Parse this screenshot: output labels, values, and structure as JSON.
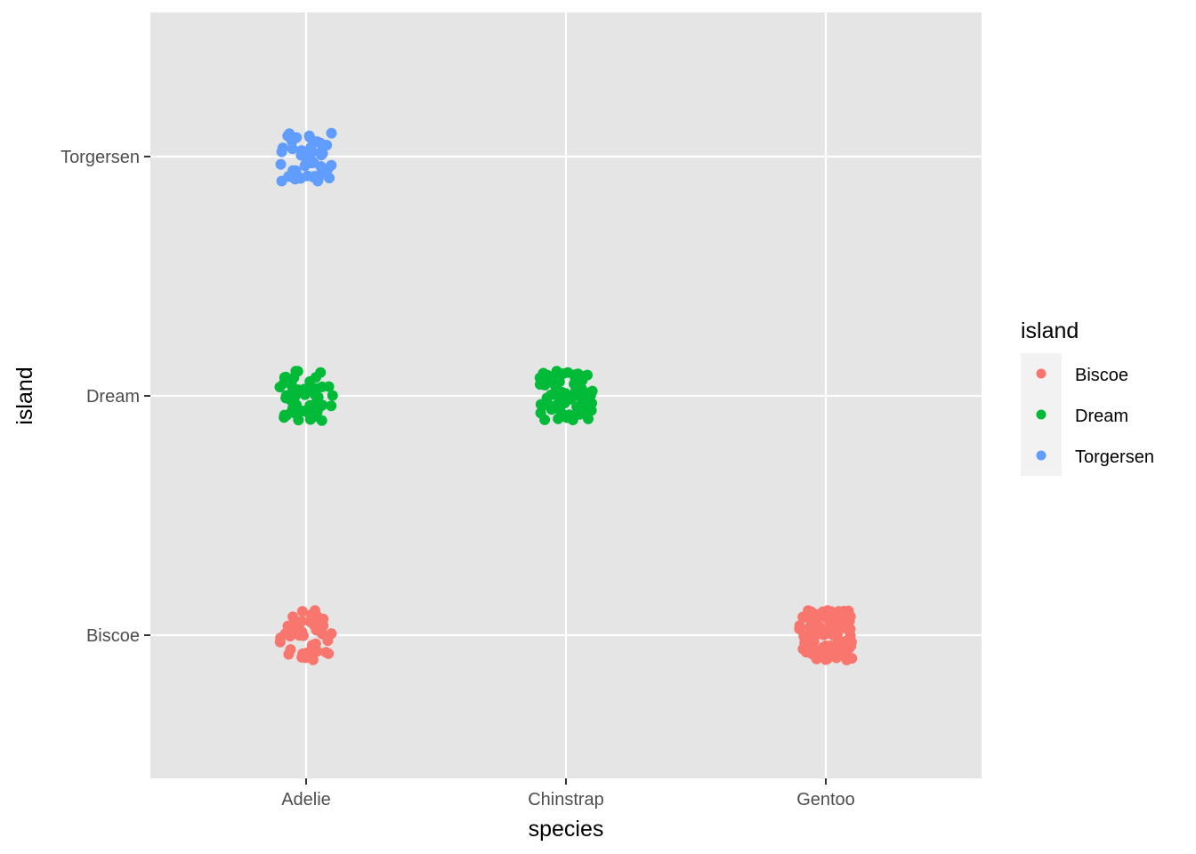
{
  "chart_data": {
    "type": "scatter",
    "jitter": true,
    "x_categories": [
      "Adelie",
      "Chinstrap",
      "Gentoo"
    ],
    "y_categories": [
      "Biscoe",
      "Dream",
      "Torgersen"
    ],
    "xlabel": "species",
    "ylabel": "island",
    "grid": true,
    "legend": {
      "title": "island",
      "position": "right",
      "entries": [
        "Biscoe",
        "Dream",
        "Torgersen"
      ]
    },
    "colors": {
      "Biscoe": "#F8766D",
      "Dream": "#00BA38",
      "Torgersen": "#619CFF",
      "panel": "#E5E5E5",
      "grid": "#FFFFFF"
    },
    "groups": [
      {
        "species": "Adelie",
        "island": "Biscoe",
        "count": 44
      },
      {
        "species": "Adelie",
        "island": "Dream",
        "count": 56
      },
      {
        "species": "Adelie",
        "island": "Torgersen",
        "count": 52
      },
      {
        "species": "Chinstrap",
        "island": "Dream",
        "count": 68
      },
      {
        "species": "Gentoo",
        "island": "Biscoe",
        "count": 124
      }
    ]
  }
}
